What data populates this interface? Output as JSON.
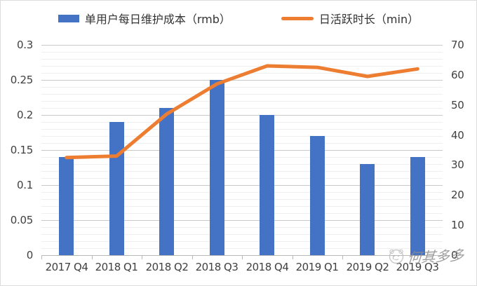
{
  "legend": {
    "items": [
      {
        "label": "单用户每日维护成本（rmb）",
        "color": "#4472C4",
        "shape": "bar-swatch"
      },
      {
        "label": "日活跃时长（min）",
        "color": "#ED7D31",
        "shape": "line-swatch"
      }
    ]
  },
  "chart_data": {
    "type": "combo-bar-line",
    "categories": [
      "2017 Q4",
      "2018 Q1",
      "2018 Q2",
      "2018 Q3",
      "2018 Q4",
      "2019 Q1",
      "2019 Q2",
      "2019 Q3"
    ],
    "series": [
      {
        "name": "单用户每日维护成本（rmb）",
        "type": "bar",
        "axis": "left",
        "color": "#4472C4",
        "values": [
          0.14,
          0.19,
          0.21,
          0.25,
          0.2,
          0.17,
          0.13,
          0.14
        ]
      },
      {
        "name": "日活跃时长（min）",
        "type": "line",
        "axis": "right",
        "color": "#ED7D31",
        "values": [
          32.5,
          33,
          47,
          57,
          63,
          62.5,
          59.5,
          62
        ]
      }
    ],
    "left_axis": {
      "min": 0,
      "max": 0.3,
      "major_step": 0.05,
      "minor_step": 0.01,
      "labels": [
        "0",
        "0.05",
        "0.1",
        "0.15",
        "0.2",
        "0.25",
        "0.3"
      ]
    },
    "right_axis": {
      "min": 0,
      "max": 70,
      "major_step": 10,
      "labels": [
        "0",
        "10",
        "20",
        "30",
        "40",
        "50",
        "60",
        "70"
      ]
    },
    "grid": {
      "major": true,
      "minor": true
    },
    "legend_position": "top",
    "title": ""
  },
  "watermark": {
    "text": "何其多多"
  },
  "colors": {
    "bar": "#4472C4",
    "line": "#ED7D31",
    "axis_text": "#404040",
    "legend_text": "#333333",
    "grid_major": "#C9C9C9",
    "grid_minor": "#EFEFEF",
    "watermark_text": "#8F8F8F"
  }
}
